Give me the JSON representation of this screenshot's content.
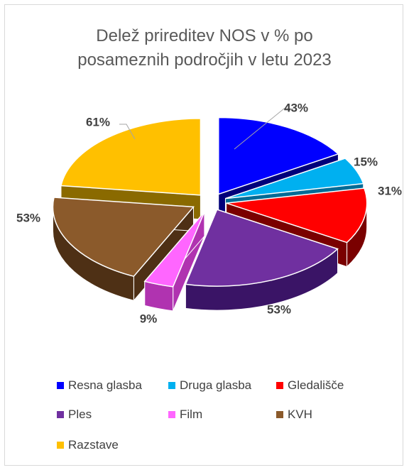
{
  "chart_data": {
    "type": "pie",
    "title_lines": [
      "Delež prireditev NOS v % po",
      "posameznih področjih v letu 2023"
    ],
    "categories": [
      "Resna glasba",
      "Druga glasba",
      "Gledališče",
      "Ples",
      "Film",
      "KVH",
      "Razstave"
    ],
    "values": [
      43,
      15,
      31,
      53,
      9,
      53,
      61
    ],
    "data_labels": [
      "43%",
      "15%",
      "31%",
      "53%",
      "9%",
      "53%",
      "61%"
    ],
    "colors": [
      "#0000ff",
      "#00b0f0",
      "#ff0000",
      "#7030a0",
      "#ff66ff",
      "#8b5a2b",
      "#ffc000"
    ],
    "side_colors": [
      "#00007a",
      "#006b96",
      "#7a0000",
      "#3a1466",
      "#b033b0",
      "#4e3015",
      "#8a6a00"
    ],
    "style": "3d-exploded",
    "legend_position": "bottom"
  }
}
